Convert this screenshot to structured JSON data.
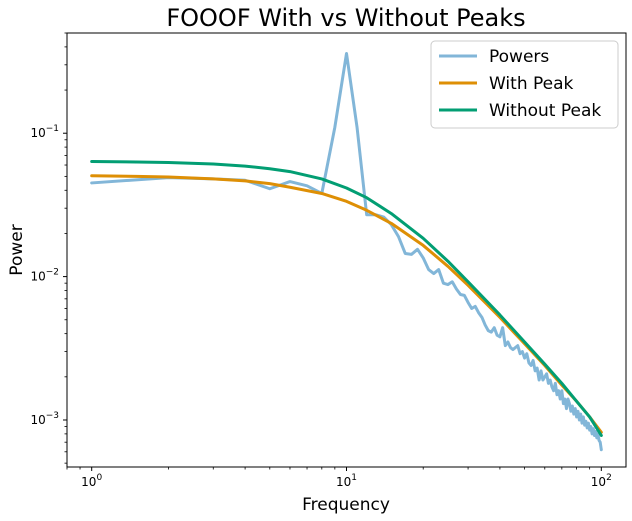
{
  "chart_data": {
    "type": "line",
    "title": "FOOOF With vs Without Peaks",
    "xlabel": "Frequency",
    "ylabel": "Power",
    "xscale": "log",
    "yscale": "log",
    "xlim": [
      0.8,
      125
    ],
    "ylim": [
      0.00047,
      0.5
    ],
    "xticks": [
      {
        "value": 1,
        "base": "10",
        "exp": "0"
      },
      {
        "value": 10,
        "base": "10",
        "exp": "1"
      },
      {
        "value": 100,
        "base": "10",
        "exp": "2"
      }
    ],
    "yticks": [
      {
        "value": 0.001,
        "base": "10",
        "exp": "−3"
      },
      {
        "value": 0.01,
        "base": "10",
        "exp": "−2"
      },
      {
        "value": 0.1,
        "base": "10",
        "exp": "−1"
      }
    ],
    "legend_position": "top-right",
    "series": [
      {
        "name": "Powers",
        "color": "#82b6d8",
        "points": [
          [
            1,
            0.045
          ],
          [
            2,
            0.049
          ],
          [
            3,
            0.048
          ],
          [
            4,
            0.047
          ],
          [
            5,
            0.041
          ],
          [
            6,
            0.046
          ],
          [
            7,
            0.043
          ],
          [
            8,
            0.038
          ],
          [
            9,
            0.11
          ],
          [
            10,
            0.36
          ],
          [
            11,
            0.11
          ],
          [
            12,
            0.027
          ],
          [
            13,
            0.027
          ],
          [
            14,
            0.026
          ],
          [
            15,
            0.023
          ],
          [
            16,
            0.019
          ],
          [
            17,
            0.0145
          ],
          [
            18,
            0.0143
          ],
          [
            19,
            0.0155
          ],
          [
            20,
            0.0135
          ],
          [
            21,
            0.0112
          ],
          [
            22,
            0.0105
          ],
          [
            23,
            0.0112
          ],
          [
            24,
            0.009
          ],
          [
            25,
            0.0088
          ],
          [
            26,
            0.0092
          ],
          [
            27,
            0.0082
          ],
          [
            28,
            0.0075
          ],
          [
            29,
            0.0074
          ],
          [
            30,
            0.0066
          ],
          [
            31,
            0.006
          ],
          [
            32,
            0.0062
          ],
          [
            33,
            0.0056
          ],
          [
            34,
            0.0052
          ],
          [
            35,
            0.0046
          ],
          [
            36,
            0.0042
          ],
          [
            37,
            0.0041
          ],
          [
            38,
            0.0044
          ],
          [
            39,
            0.0039
          ],
          [
            40,
            0.0038
          ],
          [
            41,
            0.0044
          ],
          [
            42,
            0.0033
          ],
          [
            43,
            0.0035
          ],
          [
            44,
            0.0032
          ],
          [
            45,
            0.0031
          ],
          [
            46,
            0.0032
          ],
          [
            47,
            0.0033
          ],
          [
            48,
            0.0029
          ],
          [
            49,
            0.003
          ],
          [
            50,
            0.0027
          ],
          [
            51,
            0.0029
          ],
          [
            52,
            0.0025
          ],
          [
            53,
            0.0024
          ],
          [
            54,
            0.0026
          ],
          [
            55,
            0.0022
          ],
          [
            56,
            0.0023
          ],
          [
            57,
            0.0019
          ],
          [
            58,
            0.0022
          ],
          [
            59,
            0.0019
          ],
          [
            60,
            0.002
          ],
          [
            61,
            0.0021
          ],
          [
            62,
            0.0018
          ],
          [
            63,
            0.0019
          ],
          [
            64,
            0.0017
          ],
          [
            65,
            0.0016
          ],
          [
            66,
            0.0018
          ],
          [
            67,
            0.0015
          ],
          [
            68,
            0.0016
          ],
          [
            69,
            0.0014
          ],
          [
            70,
            0.0016
          ],
          [
            71,
            0.0013
          ],
          [
            72,
            0.0014
          ],
          [
            73,
            0.0012
          ],
          [
            74,
            0.0014
          ],
          [
            75,
            0.0013
          ],
          [
            76,
            0.00115
          ],
          [
            77,
            0.00125
          ],
          [
            78,
            0.0011
          ],
          [
            79,
            0.0012
          ],
          [
            80,
            0.00105
          ],
          [
            81,
            0.00115
          ],
          [
            82,
            0.001
          ],
          [
            83,
            0.0011
          ],
          [
            84,
            0.00095
          ],
          [
            85,
            0.00105
          ],
          [
            86,
            0.00092
          ],
          [
            87,
            0.00098
          ],
          [
            88,
            0.00088
          ],
          [
            89,
            0.00095
          ],
          [
            90,
            0.00085
          ],
          [
            91,
            0.0009
          ],
          [
            92,
            0.0008
          ],
          [
            93,
            0.00087
          ],
          [
            94,
            0.00078
          ],
          [
            95,
            0.00083
          ],
          [
            96,
            0.00075
          ],
          [
            97,
            0.0008
          ],
          [
            98,
            0.00072
          ],
          [
            99,
            0.0007
          ],
          [
            100,
            0.00062
          ]
        ]
      },
      {
        "name": "With Peak",
        "color": "#de8f05",
        "points": [
          [
            1,
            0.0505
          ],
          [
            1.5,
            0.05
          ],
          [
            2,
            0.0495
          ],
          [
            3,
            0.048
          ],
          [
            4,
            0.0465
          ],
          [
            5,
            0.0445
          ],
          [
            6,
            0.042
          ],
          [
            8,
            0.038
          ],
          [
            10,
            0.0335
          ],
          [
            12,
            0.029
          ],
          [
            15,
            0.0235
          ],
          [
            20,
            0.0165
          ],
          [
            25,
            0.0118
          ],
          [
            30,
            0.0087
          ],
          [
            40,
            0.0052
          ],
          [
            50,
            0.0034
          ],
          [
            60,
            0.0024
          ],
          [
            70,
            0.00175
          ],
          [
            80,
            0.00135
          ],
          [
            90,
            0.00105
          ],
          [
            100,
            0.00082
          ]
        ]
      },
      {
        "name": "Without Peak",
        "color": "#029e73",
        "points": [
          [
            1,
            0.0635
          ],
          [
            1.5,
            0.063
          ],
          [
            2,
            0.0625
          ],
          [
            3,
            0.061
          ],
          [
            4,
            0.059
          ],
          [
            5,
            0.0565
          ],
          [
            6,
            0.054
          ],
          [
            8,
            0.048
          ],
          [
            10,
            0.0415
          ],
          [
            12,
            0.0355
          ],
          [
            15,
            0.0275
          ],
          [
            20,
            0.0185
          ],
          [
            25,
            0.0128
          ],
          [
            30,
            0.0092
          ],
          [
            40,
            0.0054
          ],
          [
            50,
            0.0035
          ],
          [
            60,
            0.00245
          ],
          [
            70,
            0.0018
          ],
          [
            80,
            0.00135
          ],
          [
            90,
            0.00105
          ],
          [
            100,
            0.00078
          ]
        ]
      }
    ]
  }
}
